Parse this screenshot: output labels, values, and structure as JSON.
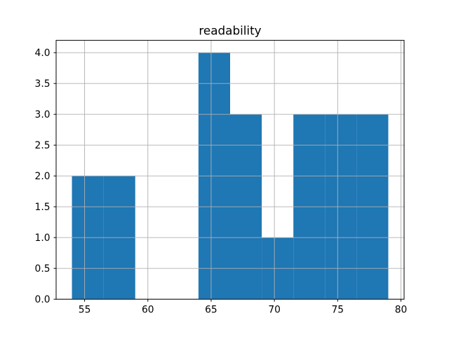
{
  "chart_data": {
    "type": "bar",
    "subtype": "histogram",
    "title": "readability",
    "xlabel": "",
    "ylabel": "",
    "bin_edges": [
      54,
      56.5,
      59,
      61.5,
      64,
      66.5,
      69,
      71.5,
      74,
      76.5,
      79
    ],
    "counts": [
      2,
      2,
      0,
      0,
      4,
      3,
      1,
      3,
      3,
      3
    ],
    "xlim": [
      52.75,
      80.25
    ],
    "ylim": [
      0,
      4.2
    ],
    "x_ticks": [
      55,
      60,
      65,
      70,
      75,
      80
    ],
    "x_tick_labels": [
      "55",
      "60",
      "65",
      "70",
      "75",
      "80"
    ],
    "y_ticks": [
      0,
      0.5,
      1,
      1.5,
      2,
      2.5,
      3,
      3.5,
      4
    ],
    "y_tick_labels": [
      "0.0",
      "0.5",
      "1.0",
      "1.5",
      "2.0",
      "2.5",
      "3.0",
      "3.5",
      "4.0"
    ],
    "grid": true,
    "grid_above_bars": true,
    "legend": null,
    "colors": {
      "bar": "#1f77b4",
      "grid": "#b0b0b0",
      "spine": "#000000",
      "text": "#000000",
      "background": "#ffffff"
    }
  }
}
